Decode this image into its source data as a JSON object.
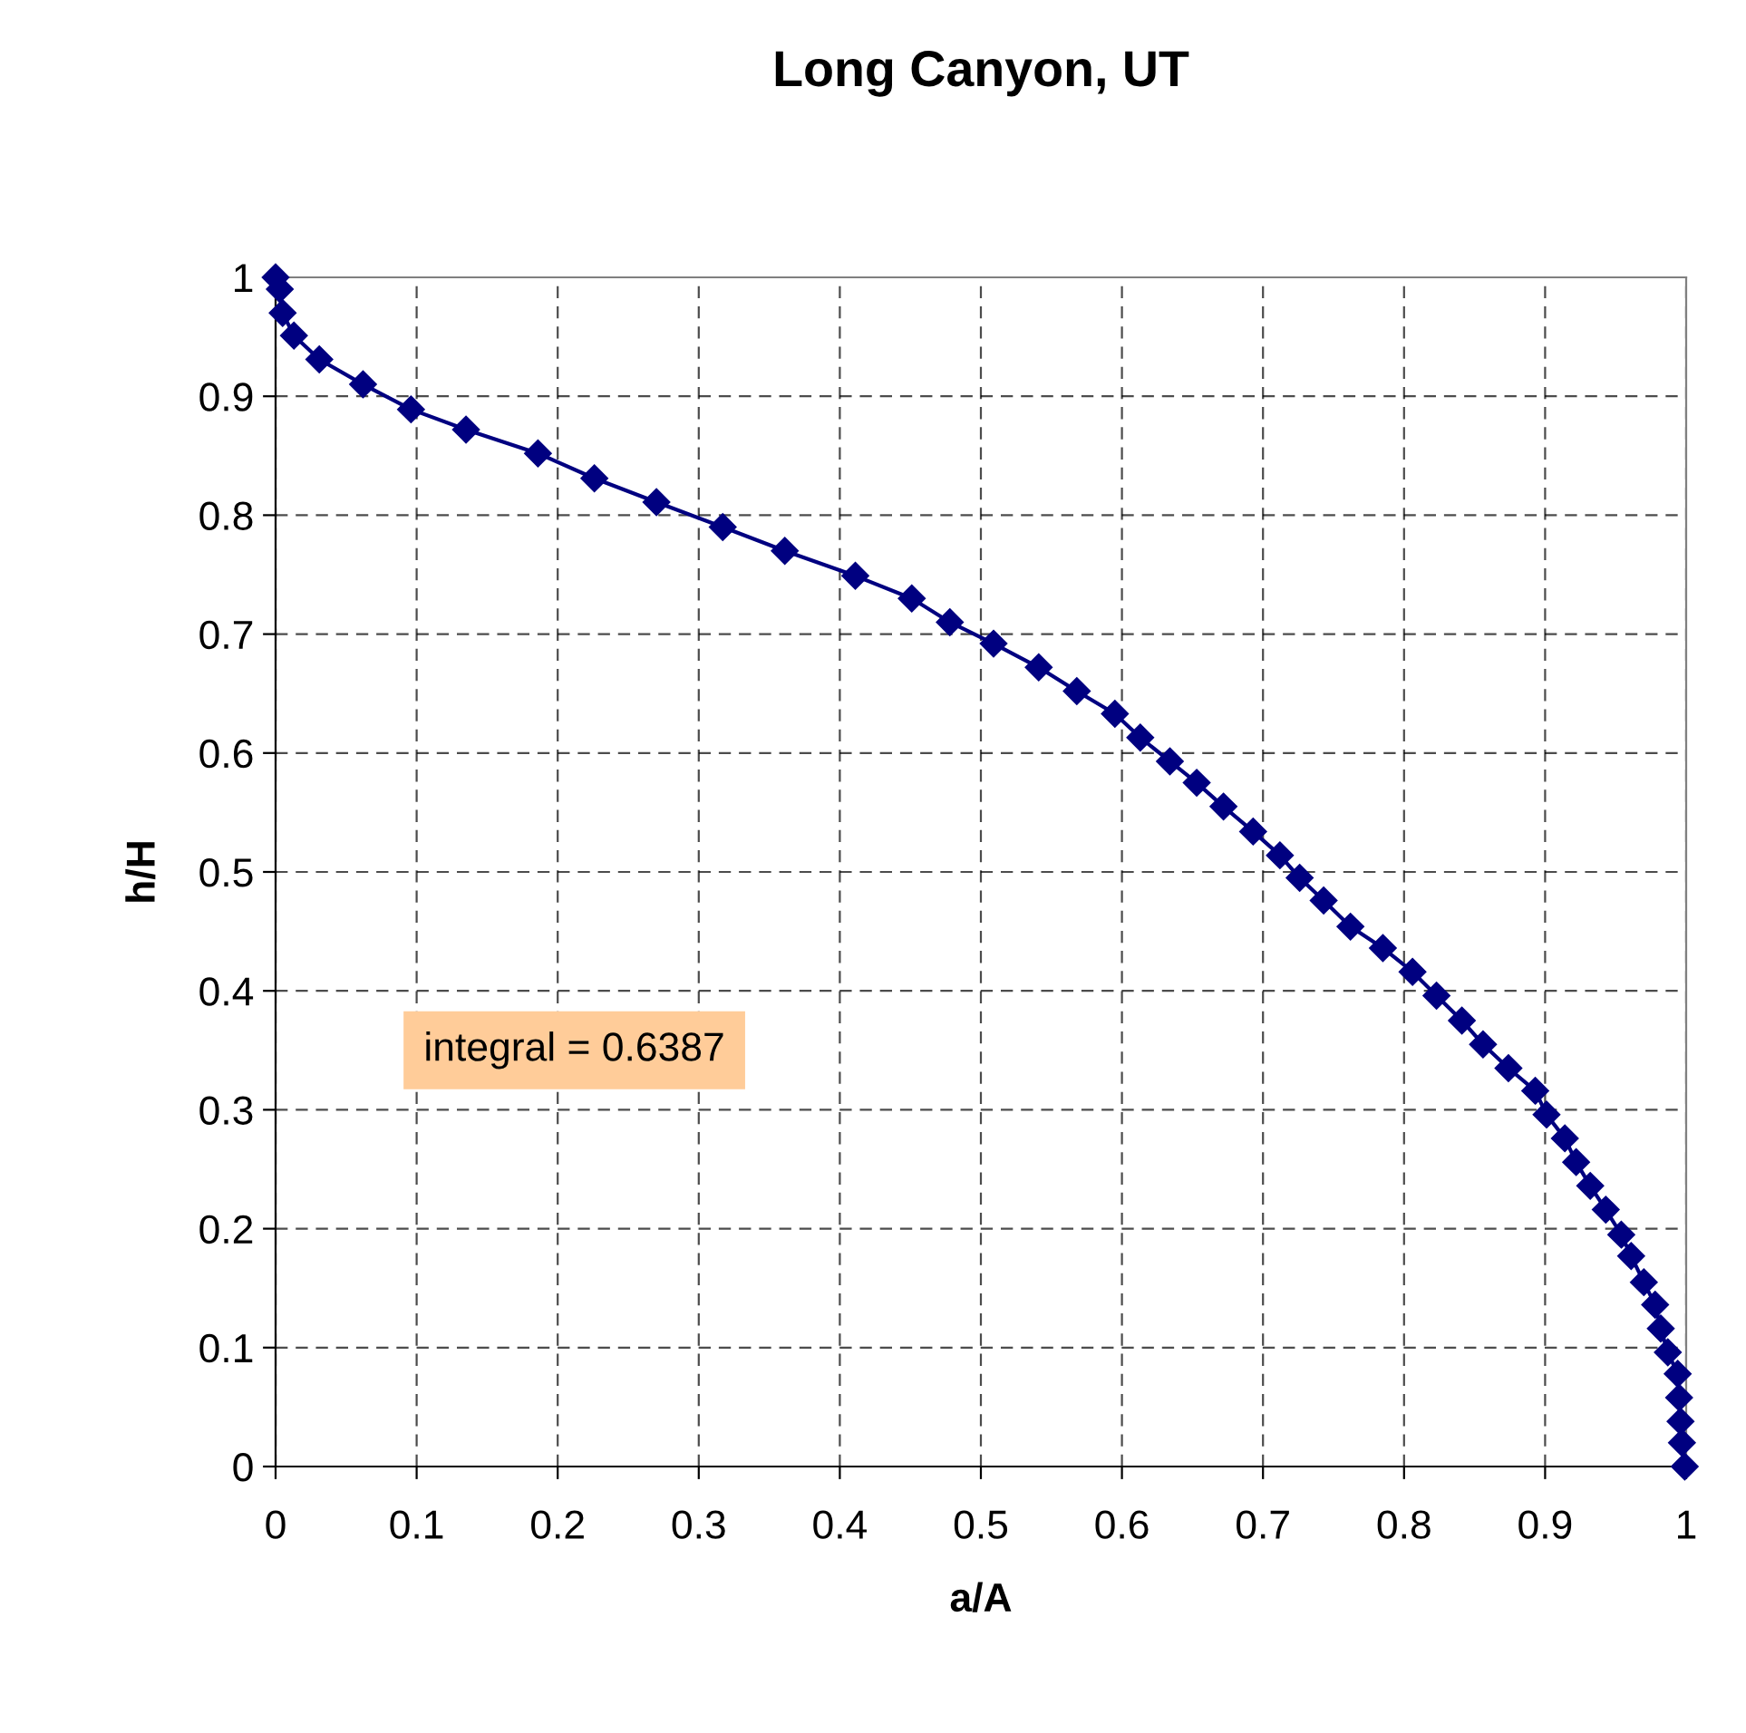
{
  "chart_data": {
    "type": "line",
    "title": "Long Canyon, UT",
    "xlabel": "a/A",
    "ylabel": "h/H",
    "series": [
      {
        "color": "#000080",
        "x": [
          0,
          0.003,
          0.005,
          0.013,
          0.031,
          0.062,
          0.096,
          0.135,
          0.186,
          0.226,
          0.27,
          0.317,
          0.361,
          0.411,
          0.451,
          0.478,
          0.509,
          0.541,
          0.568,
          0.595,
          0.613,
          0.634,
          0.653,
          0.672,
          0.693,
          0.712,
          0.726,
          0.743,
          0.762,
          0.785,
          0.806,
          0.823,
          0.841,
          0.856,
          0.874,
          0.893,
          0.901,
          0.914,
          0.922,
          0.932,
          0.943,
          0.954,
          0.961,
          0.97,
          0.978,
          0.982,
          0.987,
          0.994,
          0.995,
          0.996,
          0.997,
          0.999
        ],
        "values": [
          1,
          0.99,
          0.97,
          0.951,
          0.931,
          0.91,
          0.889,
          0.872,
          0.852,
          0.831,
          0.811,
          0.79,
          0.77,
          0.749,
          0.73,
          0.71,
          0.692,
          0.672,
          0.652,
          0.633,
          0.613,
          0.593,
          0.575,
          0.555,
          0.534,
          0.514,
          0.495,
          0.476,
          0.454,
          0.436,
          0.416,
          0.396,
          0.375,
          0.355,
          0.335,
          0.316,
          0.296,
          0.276,
          0.256,
          0.236,
          0.216,
          0.195,
          0.177,
          0.155,
          0.136,
          0.116,
          0.096,
          0.078,
          0.058,
          0.038,
          0.02,
          0
        ]
      }
    ],
    "xlim": [
      0,
      1
    ],
    "ylim": [
      0,
      1
    ],
    "xticks": [
      0,
      0.1,
      0.2,
      0.3,
      0.4,
      0.5,
      0.6,
      0.7,
      0.8,
      0.9,
      1
    ],
    "yticks": [
      0,
      0.1,
      0.2,
      0.3,
      0.4,
      0.5,
      0.6,
      0.7,
      0.8,
      0.9,
      1
    ],
    "grid": true,
    "marker": "diamond",
    "line_style": "solid",
    "annotations": [
      "integral = 0.6387"
    ]
  }
}
